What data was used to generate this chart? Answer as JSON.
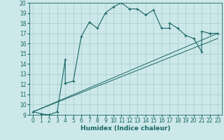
{
  "xlabel": "Humidex (Indice chaleur)",
  "bg_color": "#cce8e8",
  "grid_color": "#aacccc",
  "line_color": "#1a6666",
  "xlim": [
    -0.5,
    23.5
  ],
  "ylim": [
    9,
    20
  ],
  "xticks": [
    0,
    1,
    2,
    3,
    4,
    5,
    6,
    7,
    8,
    9,
    10,
    11,
    12,
    13,
    14,
    15,
    16,
    17,
    18,
    19,
    20,
    21,
    22,
    23
  ],
  "yticks": [
    9,
    10,
    11,
    12,
    13,
    14,
    15,
    16,
    17,
    18,
    19,
    20
  ],
  "main_x": [
    0,
    1,
    2,
    3,
    3,
    4,
    4,
    5,
    6,
    7,
    8,
    9,
    10,
    11,
    12,
    13,
    14,
    15,
    15,
    16,
    17,
    17,
    18,
    19,
    20,
    21,
    21,
    22,
    23
  ],
  "main_y": [
    9.3,
    9.1,
    9.0,
    9.3,
    9.3,
    14.4,
    12.1,
    12.3,
    16.7,
    18.1,
    17.5,
    19.0,
    19.6,
    20.0,
    19.4,
    19.4,
    18.8,
    19.3,
    19.3,
    17.5,
    17.5,
    18.0,
    17.5,
    16.8,
    16.5,
    15.2,
    17.2,
    17.0,
    17.0
  ],
  "line1_x": [
    0,
    23
  ],
  "line1_y": [
    9.3,
    17.0
  ],
  "line2_x": [
    0,
    23
  ],
  "line2_y": [
    9.3,
    16.5
  ],
  "marker_x": [
    0,
    1,
    2,
    3,
    4,
    4,
    5,
    6,
    7,
    8,
    9,
    10,
    11,
    12,
    13,
    14,
    15,
    16,
    17,
    17,
    18,
    19,
    20,
    21,
    21,
    22,
    23
  ],
  "marker_y": [
    9.3,
    9.1,
    9.0,
    9.3,
    14.4,
    12.1,
    12.3,
    16.7,
    18.1,
    17.5,
    19.0,
    19.6,
    20.0,
    19.4,
    19.4,
    18.8,
    19.3,
    17.5,
    17.5,
    18.0,
    17.5,
    16.8,
    16.5,
    15.2,
    17.2,
    17.0,
    17.0
  ],
  "tick_fontsize": 5.5,
  "xlabel_fontsize": 6.5
}
